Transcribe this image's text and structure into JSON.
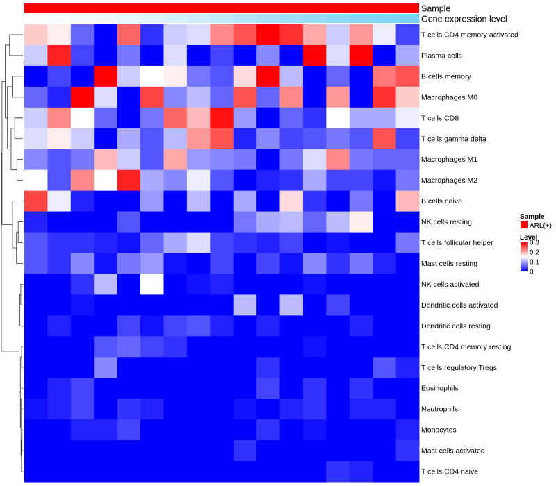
{
  "chart_data": {
    "type": "heatmap",
    "annotation_labels": {
      "sample": "Sample",
      "expression": "Gene expression level"
    },
    "rows": [
      "T cells CD4 memory activated",
      "Plasma cells",
      "B cells memory",
      "Macrophages M0",
      "T cells CD8",
      "T cells gamma delta",
      "Macrophages M1",
      "Macrophages M2",
      "B cells naive",
      "NK cells resting",
      "T cells follicular helper",
      "Mast cells resting",
      "NK cells activated",
      "Dendritic cells activated",
      "Dendritic cells resting",
      "T cells CD4 memory resting",
      "T cells regulatory  Tregs",
      "Eosinophils",
      "Neutrophils",
      "Monocytes",
      "Mast cells activated",
      "T cells CD4 naive"
    ],
    "values": [
      [
        0.18,
        0.16,
        0.06,
        0.0,
        0.24,
        0.03,
        0.12,
        0.13,
        0.22,
        0.25,
        0.3,
        0.27,
        0.2,
        0.12,
        0.21,
        0.14,
        0.04
      ],
      [
        0.12,
        0.28,
        0.04,
        0.0,
        0.07,
        0.0,
        0.13,
        0.0,
        0.04,
        0.0,
        0.08,
        0.0,
        0.3,
        0.13,
        0.3,
        0.0,
        0.1
      ],
      [
        0.0,
        0.04,
        0.0,
        0.3,
        0.12,
        0.15,
        0.16,
        0.07,
        0.05,
        0.17,
        0.3,
        0.11,
        0.0,
        0.06,
        0.0,
        0.23,
        0.25
      ],
      [
        0.06,
        0.02,
        0.3,
        0.13,
        0.0,
        0.26,
        0.08,
        0.11,
        0.06,
        0.25,
        0.06,
        0.22,
        0.0,
        0.21,
        0.0,
        0.27,
        0.18
      ],
      [
        0.12,
        0.22,
        0.15,
        0.06,
        0.0,
        0.07,
        0.24,
        0.19,
        0.29,
        0.09,
        0.0,
        0.06,
        0.03,
        0.15,
        0.1,
        0.1,
        0.14
      ],
      [
        0.13,
        0.16,
        0.12,
        0.0,
        0.1,
        0.05,
        0.11,
        0.21,
        0.25,
        0.02,
        0.08,
        0.04,
        0.05,
        0.07,
        0.05,
        0.25,
        0.04
      ],
      [
        0.08,
        0.05,
        0.07,
        0.19,
        0.12,
        0.05,
        0.2,
        0.09,
        0.08,
        0.07,
        0.0,
        0.07,
        0.13,
        0.22,
        0.07,
        0.06,
        0.06
      ],
      [
        0.15,
        0.05,
        0.22,
        0.15,
        0.28,
        0.1,
        0.08,
        0.14,
        0.05,
        0.0,
        0.02,
        0.03,
        0.1,
        0.04,
        0.04,
        0.01,
        0.07
      ],
      [
        0.26,
        0.14,
        0.02,
        0.0,
        0.0,
        0.09,
        0.0,
        0.11,
        0.0,
        0.1,
        0.0,
        0.17,
        0.03,
        0.0,
        0.07,
        0.0,
        0.19
      ],
      [
        0.02,
        0.0,
        0.0,
        0.0,
        0.05,
        0.0,
        0.0,
        0.0,
        0.0,
        0.07,
        0.1,
        0.11,
        0.06,
        0.11,
        0.16,
        0.0,
        0.0
      ],
      [
        0.05,
        0.03,
        0.03,
        0.02,
        0.01,
        0.06,
        0.1,
        0.13,
        0.04,
        0.03,
        0.02,
        0.04,
        0.0,
        0.01,
        0.0,
        0.0,
        0.07
      ],
      [
        0.05,
        0.03,
        0.08,
        0.01,
        0.07,
        0.09,
        0.01,
        0.0,
        0.04,
        0.0,
        0.04,
        0.01,
        0.08,
        0.03,
        0.07,
        0.02,
        0.0
      ],
      [
        0.0,
        0.0,
        0.03,
        0.11,
        0.0,
        0.15,
        0.0,
        0.01,
        0.02,
        0.0,
        0.0,
        0.0,
        0.01,
        0.0,
        0.0,
        0.0,
        0.0
      ],
      [
        0.0,
        0.0,
        0.01,
        0.0,
        0.0,
        0.0,
        0.0,
        0.0,
        0.0,
        0.11,
        0.0,
        0.11,
        0.0,
        0.04,
        0.0,
        0.0,
        0.0
      ],
      [
        0.0,
        0.02,
        0.0,
        0.0,
        0.04,
        0.01,
        0.04,
        0.05,
        0.02,
        0.0,
        0.02,
        0.0,
        0.0,
        0.0,
        0.02,
        0.0,
        0.0
      ],
      [
        0.0,
        0.0,
        0.0,
        0.05,
        0.06,
        0.04,
        0.03,
        0.0,
        0.0,
        0.0,
        0.0,
        0.0,
        0.01,
        0.0,
        0.0,
        0.0,
        0.0
      ],
      [
        0.0,
        0.0,
        0.0,
        0.08,
        0.0,
        0.0,
        0.0,
        0.0,
        0.0,
        0.0,
        0.03,
        0.0,
        0.0,
        0.0,
        0.0,
        0.05,
        0.02
      ],
      [
        0.0,
        0.02,
        0.04,
        0.0,
        0.0,
        0.0,
        0.0,
        0.0,
        0.0,
        0.0,
        0.04,
        0.0,
        0.03,
        0.0,
        0.03,
        0.0,
        0.0
      ],
      [
        0.01,
        0.02,
        0.04,
        0.0,
        0.03,
        0.02,
        0.0,
        0.0,
        0.0,
        0.01,
        0.0,
        0.02,
        0.03,
        0.0,
        0.02,
        0.02,
        0.0
      ],
      [
        0.0,
        0.0,
        0.02,
        0.02,
        0.04,
        0.0,
        0.0,
        0.0,
        0.0,
        0.0,
        0.03,
        0.0,
        0.01,
        0.0,
        0.0,
        0.0,
        0.02
      ],
      [
        0.0,
        0.0,
        0.0,
        0.0,
        0.0,
        0.0,
        0.0,
        0.0,
        0.0,
        0.03,
        0.0,
        0.0,
        0.0,
        0.0,
        0.0,
        0.0,
        0.03
      ],
      [
        0.0,
        0.0,
        0.0,
        0.0,
        0.0,
        0.0,
        0.0,
        0.0,
        0.0,
        0.0,
        0.0,
        0.0,
        0.0,
        0.03,
        0.02,
        0.0,
        0.0
      ]
    ],
    "color_range": [
      0,
      0.3
    ],
    "colors": {
      "low": "#0000ff",
      "mid": "#ffffff",
      "high": "#ff0000",
      "sample_bar": "#ff0000",
      "dendrogram": "#333333"
    },
    "expression_level": [
      0.02,
      0.04,
      0.07,
      0.1,
      0.14,
      0.18,
      0.24,
      0.3,
      0.38,
      0.46,
      0.52,
      0.58,
      0.64,
      0.7,
      0.74,
      0.78,
      0.82
    ],
    "expression_colors": {
      "low": "#ffffff",
      "high": "#5bc8f5"
    },
    "legend": {
      "sample_title": "Sample",
      "sample_entry": "ARL(+)",
      "level_title": "Level",
      "level_ticks": [
        "0.3",
        "0.2",
        "0.1",
        "0"
      ],
      "level_tick_values": [
        0.3,
        0.2,
        0.1,
        0
      ]
    }
  }
}
